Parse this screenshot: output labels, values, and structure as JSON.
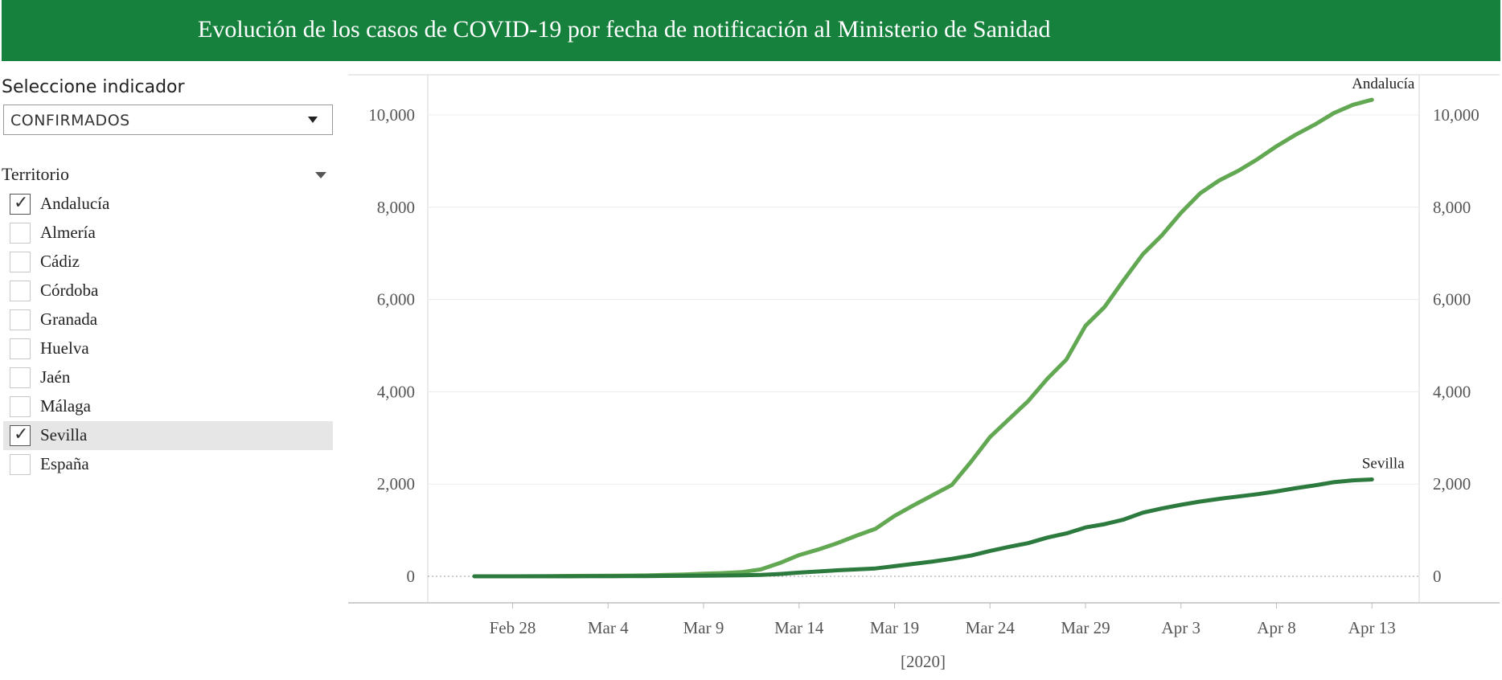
{
  "header": {
    "title": "Evolución de los casos de COVID-19 por fecha de notificación al Ministerio de Sanidad"
  },
  "indicator": {
    "label": "Seleccione indicador",
    "value": "CONFIRMADOS"
  },
  "territory": {
    "label": "Territorio",
    "items": [
      {
        "label": "Andalucía",
        "checked": true
      },
      {
        "label": "Almería",
        "checked": false
      },
      {
        "label": "Cádiz",
        "checked": false
      },
      {
        "label": "Córdoba",
        "checked": false
      },
      {
        "label": "Granada",
        "checked": false
      },
      {
        "label": "Huelva",
        "checked": false
      },
      {
        "label": "Jaén",
        "checked": false
      },
      {
        "label": "Málaga",
        "checked": false
      },
      {
        "label": "Sevilla",
        "checked": true
      },
      {
        "label": "España",
        "checked": false
      }
    ]
  },
  "colors": {
    "header_bg": "#15813c",
    "andalucia": "#62a853",
    "sevilla": "#2d7a3e"
  },
  "chart_data": {
    "type": "line",
    "xlabel": "[2020]",
    "ylabel": "",
    "ylim": [
      0,
      10800
    ],
    "x_ticks": [
      "Feb 28",
      "Mar 4",
      "Mar 9",
      "Mar 14",
      "Mar 19",
      "Mar 24",
      "Mar 29",
      "Apr 3",
      "Apr 8",
      "Apr 13"
    ],
    "y_ticks": [
      0,
      2000,
      4000,
      6000,
      8000,
      10000
    ],
    "y_tick_labels": [
      "0",
      "2,000",
      "4,000",
      "6,000",
      "8,000",
      "10,000"
    ],
    "grid": true,
    "dual_axis": true,
    "x": [
      "Feb 26",
      "Feb 27",
      "Feb 28",
      "Feb 29",
      "Mar 1",
      "Mar 2",
      "Mar 3",
      "Mar 4",
      "Mar 5",
      "Mar 6",
      "Mar 7",
      "Mar 8",
      "Mar 9",
      "Mar 10",
      "Mar 11",
      "Mar 12",
      "Mar 13",
      "Mar 14",
      "Mar 15",
      "Mar 16",
      "Mar 17",
      "Mar 18",
      "Mar 19",
      "Mar 20",
      "Mar 21",
      "Mar 22",
      "Mar 23",
      "Mar 24",
      "Mar 25",
      "Mar 26",
      "Mar 27",
      "Mar 28",
      "Mar 29",
      "Mar 30",
      "Mar 31",
      "Apr 1",
      "Apr 2",
      "Apr 3",
      "Apr 4",
      "Apr 5",
      "Apr 6",
      "Apr 7",
      "Apr 8",
      "Apr 9",
      "Apr 10",
      "Apr 11",
      "Apr 12",
      "Apr 13"
    ],
    "series": [
      {
        "name": "Andalucía",
        "values": [
          0,
          0,
          0,
          2,
          5,
          8,
          10,
          12,
          15,
          20,
          30,
          40,
          55,
          70,
          90,
          150,
          290,
          460,
          580,
          720,
          880,
          1030,
          1310,
          1540,
          1760,
          1980,
          2480,
          3020,
          3410,
          3800,
          4280,
          4700,
          5430,
          5840,
          6420,
          6980,
          7390,
          7880,
          8300,
          8580,
          8790,
          9040,
          9320,
          9570,
          9790,
          10040,
          10220,
          10330
        ]
      },
      {
        "name": "Sevilla",
        "values": [
          0,
          0,
          0,
          0,
          0,
          0,
          1,
          2,
          3,
          5,
          8,
          10,
          13,
          18,
          22,
          30,
          50,
          80,
          105,
          130,
          150,
          170,
          220,
          270,
          320,
          380,
          450,
          550,
          640,
          720,
          840,
          930,
          1060,
          1130,
          1230,
          1380,
          1470,
          1550,
          1620,
          1680,
          1730,
          1780,
          1840,
          1910,
          1970,
          2040,
          2080,
          2100
        ]
      }
    ]
  }
}
